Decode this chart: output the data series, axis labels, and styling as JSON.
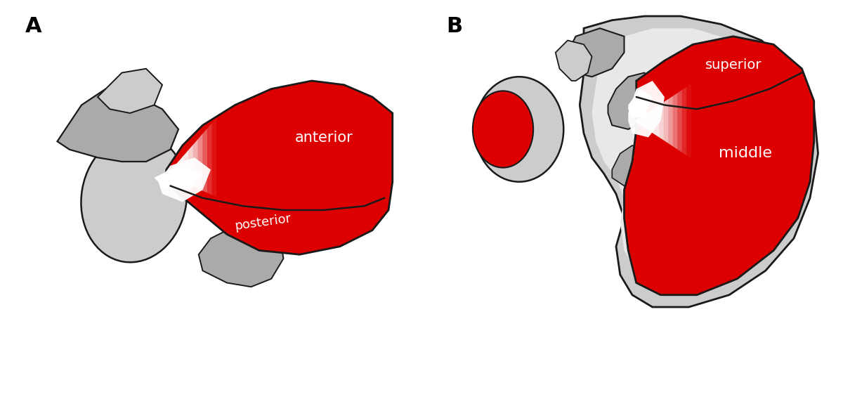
{
  "panel_A_label": "A",
  "panel_B_label": "B",
  "label_anterior": "anterior",
  "label_posterior": "posterior",
  "label_superior": "superior",
  "label_middle": "middle",
  "text_color_white": "#FFFFFF",
  "color_red": "#DD0000",
  "color_gray_light": "#CCCCCC",
  "color_gray_mid": "#AAAAAA",
  "color_gray_dark": "#777777",
  "color_outline": "#1A1A1A",
  "color_white": "#FFFFFF",
  "color_bg": "#FFFFFF",
  "figsize": [
    12.0,
    5.75
  ],
  "dpi": 100
}
